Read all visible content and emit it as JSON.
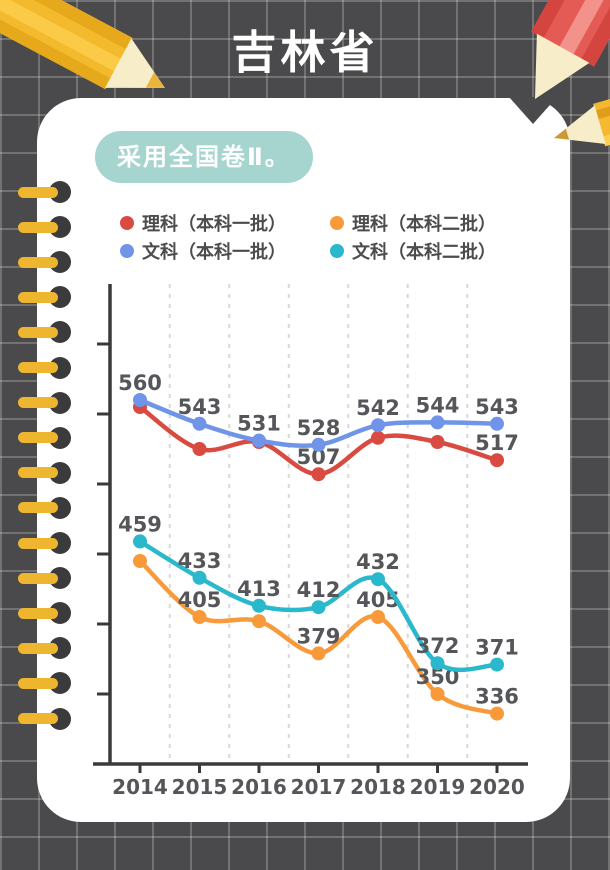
{
  "title": "吉林省",
  "badge_text": "采用全国卷Ⅱ。",
  "colors": {
    "badge_bg": "#a6d4cf",
    "card_bg": "#ffffff",
    "page_bg": "#4a4a4c",
    "axis": "#3a3a3c",
    "label_text": "#55565a",
    "series_li1": "#d94a41",
    "series_li2": "#f8993a",
    "series_wen1": "#6f94e8",
    "series_wen2": "#29b8cc"
  },
  "legend": {
    "items": [
      {
        "label": "理科（本科一批）",
        "color": "#d94a41"
      },
      {
        "label": "理科（本科二批）",
        "color": "#f8993a"
      },
      {
        "label": "文科（本科一批）",
        "color": "#6f94e8"
      },
      {
        "label": "文科（本科二批）",
        "color": "#29b8cc"
      }
    ]
  },
  "chart_data": {
    "type": "line",
    "title": "吉林省",
    "subtitle": "采用全国卷Ⅱ。",
    "x": [
      "2014",
      "2015",
      "2016",
      "2017",
      "2018",
      "2019",
      "2020"
    ],
    "series": [
      {
        "name": "理科（本科一批）",
        "color": "#d94a41",
        "values": [
          555,
          525,
          530,
          507,
          533,
          530,
          517
        ],
        "labeled_points": [
          3,
          6
        ]
      },
      {
        "name": "文科（本科一批）",
        "color": "#6f94e8",
        "values": [
          560,
          543,
          531,
          528,
          542,
          544,
          543
        ],
        "labeled_points": [
          0,
          1,
          2,
          3,
          4,
          5,
          6
        ]
      },
      {
        "name": "理科（本科二批）",
        "color": "#f8993a",
        "values": [
          445,
          405,
          402,
          379,
          405,
          350,
          336
        ],
        "labeled_points": [
          1,
          3,
          4,
          5,
          6
        ]
      },
      {
        "name": "文科（本科二批）",
        "color": "#29b8cc",
        "values": [
          459,
          433,
          413,
          412,
          432,
          372,
          371
        ],
        "labeled_points": [
          0,
          1,
          2,
          3,
          4,
          5,
          6
        ]
      }
    ],
    "ylim": [
      300,
      620
    ],
    "yticks": [
      350,
      400,
      450,
      500,
      550,
      600
    ],
    "grid": "vertical-dashed-between-categories",
    "legend_position": "top"
  }
}
